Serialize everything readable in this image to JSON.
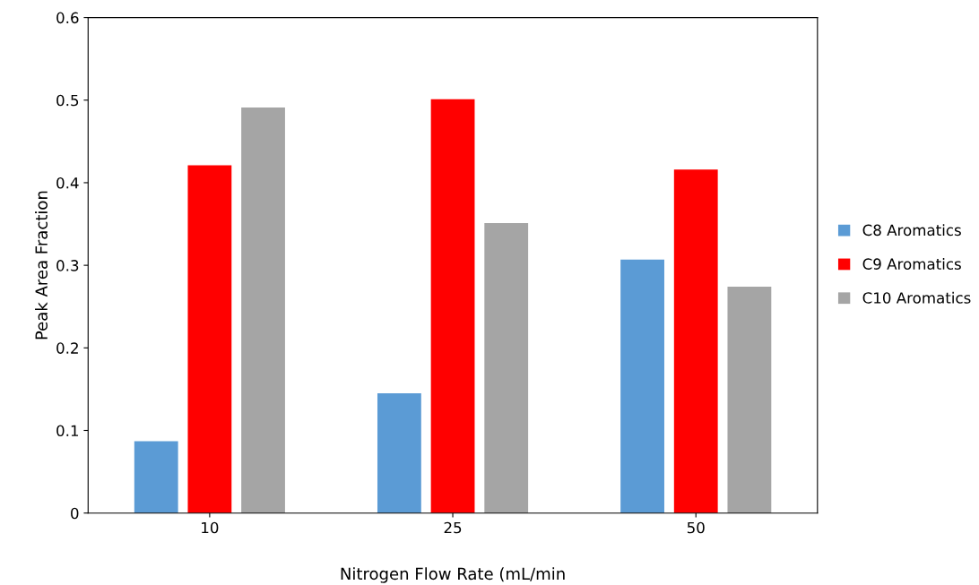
{
  "chart_data": {
    "type": "bar",
    "xlabel": "Nitrogen Flow Rate (mL/min",
    "ylabel": "Peak Area Fraction",
    "categories": [
      "10",
      "25",
      "50"
    ],
    "series": [
      {
        "name": "C8 Aromatics",
        "color": "#5b9bd5",
        "values": [
          0.087,
          0.145,
          0.307
        ]
      },
      {
        "name": "C9 Aromatics",
        "color": "#ff0000",
        "values": [
          0.421,
          0.501,
          0.416
        ]
      },
      {
        "name": "C10 Aromatics",
        "color": "#a5a5a5",
        "values": [
          0.491,
          0.351,
          0.274
        ]
      }
    ],
    "ylim": [
      0,
      0.6
    ],
    "yticks": [
      {
        "value": 0,
        "label": "0"
      },
      0.1,
      0.2,
      0.3,
      0.4,
      0.5,
      0.6
    ],
    "grid": false,
    "legend": "right"
  }
}
